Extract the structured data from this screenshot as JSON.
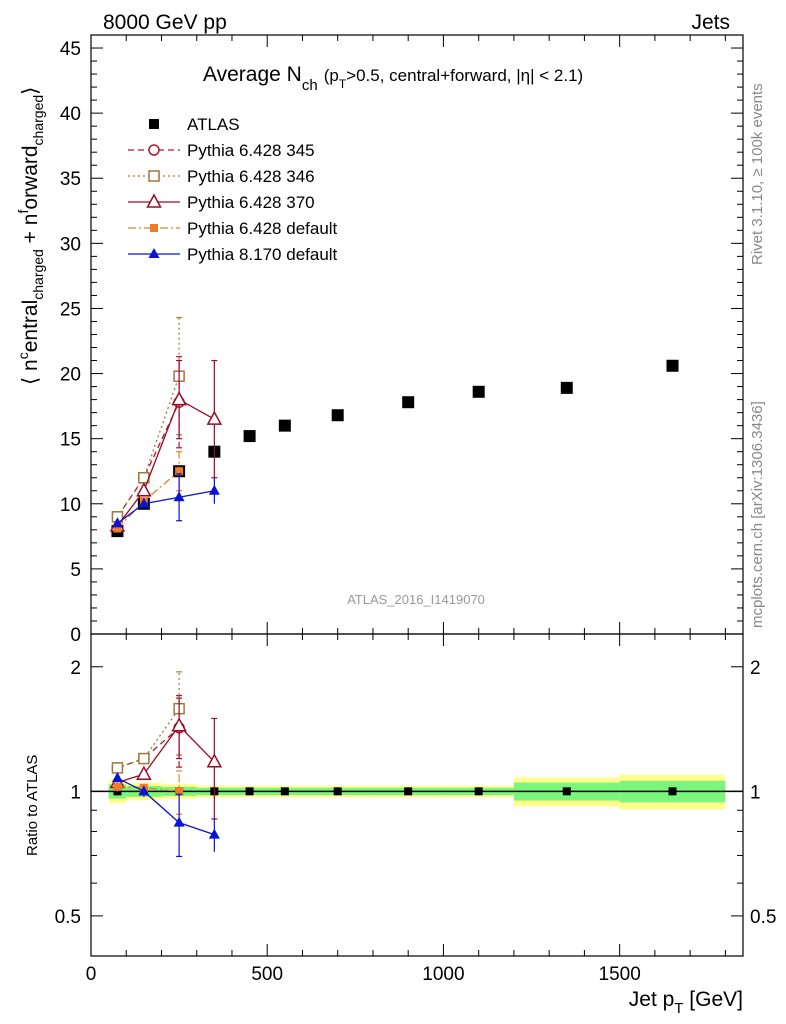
{
  "header": {
    "left": "8000 GeV pp",
    "right": "Jets"
  },
  "side_labels": {
    "rivet": "Rivet 3.1.10, ≥ 100k events",
    "mcplots": "mcplots.cern.ch [arXiv:1306.3436]"
  },
  "plot_title": {
    "main": "Average N",
    "main_sub": "ch",
    "paren_open": "(p",
    "paren_sub": "T",
    "paren_rest": ">0.5, central+forward, |η| < 2.1)"
  },
  "watermark": "ATLAS_2016_I1419070",
  "ylabel_main": {
    "p1": "⟨ n",
    "sup1": "c",
    "p2": "entral",
    "sub1": "charged",
    "p3": " + n",
    "sup2": "f",
    "p4": "orward",
    "sub2": "charged",
    "p5": "⟩"
  },
  "ylabel_ratio": "Ratio to ATLAS",
  "xlabel": {
    "main": "Jet p",
    "sub": "T",
    "rest": " [GeV]"
  },
  "colors": {
    "atlas": "#000000",
    "p345": "#b2182b",
    "p346": "#a0783c",
    "p370": "#9b0a24",
    "p6def": "#f07c28",
    "p8def": "#0a14d2",
    "band_inner": "#7cf57c",
    "band_outer": "#ffff8c"
  },
  "chart_data": {
    "type": "scatter",
    "xlabel": "Jet p_T [GeV]",
    "ylabel": "⟨ n^central_charged + n^forward_charged ⟩",
    "xlim": [
      0,
      1850
    ],
    "ylim": [
      0,
      46
    ],
    "ratio_ylim": [
      0.4,
      2.4
    ],
    "ratio_yscale": "log",
    "x_ticks": [
      "0",
      "500",
      "1000",
      "1500"
    ],
    "y_ticks": [
      "0",
      "5",
      "10",
      "15",
      "20",
      "25",
      "30",
      "35",
      "40",
      "45"
    ],
    "ratio_ticks": [
      "0.5",
      "1",
      "2"
    ],
    "legend_position": "top-left",
    "series": [
      {
        "key": "atlas",
        "name": "ATLAS",
        "marker": "filled-square",
        "line": "none",
        "points": [
          {
            "x": 75,
            "y": 7.9,
            "err": 0.3,
            "xlo": 50,
            "xhi": 100,
            "bin": 0.04
          },
          {
            "x": 150,
            "y": 10.0,
            "err": 0.3,
            "xlo": 100,
            "xhi": 200,
            "bin": 0.03
          },
          {
            "x": 250,
            "y": 12.5,
            "err": 0.2,
            "xlo": 200,
            "xhi": 300,
            "bin": 0.025
          },
          {
            "x": 350,
            "y": 14.0,
            "err": 0.2,
            "xlo": 300,
            "xhi": 400,
            "bin": 0.02
          },
          {
            "x": 450,
            "y": 15.2,
            "err": 0.2,
            "xlo": 400,
            "xhi": 500,
            "bin": 0.02
          },
          {
            "x": 550,
            "y": 16.0,
            "err": 0.2,
            "xlo": 500,
            "xhi": 600,
            "bin": 0.02
          },
          {
            "x": 700,
            "y": 16.8,
            "err": 0.2,
            "xlo": 600,
            "xhi": 800,
            "bin": 0.02
          },
          {
            "x": 900,
            "y": 17.8,
            "err": 0.2,
            "xlo": 800,
            "xhi": 1000,
            "bin": 0.02
          },
          {
            "x": 1100,
            "y": 18.6,
            "err": 0.2,
            "xlo": 1000,
            "xhi": 1200,
            "bin": 0.02
          },
          {
            "x": 1350,
            "y": 18.9,
            "err": 0.3,
            "xlo": 1200,
            "xhi": 1500,
            "bin": 0.05
          },
          {
            "x": 1650,
            "y": 20.6,
            "err": 0.4,
            "xlo": 1500,
            "xhi": 1800,
            "bin": 0.06
          }
        ]
      },
      {
        "key": "p345",
        "name": "Pythia 6.428 345",
        "marker": "open-circle",
        "line": "dashed",
        "points": [
          {
            "x": 75,
            "y": 9.0,
            "err": 0.2
          },
          {
            "x": 150,
            "y": 12.0,
            "err": 0.3
          },
          {
            "x": 250,
            "y": 17.8,
            "err": 3.5
          }
        ]
      },
      {
        "key": "p346",
        "name": "Pythia 6.428 346",
        "marker": "open-square",
        "line": "dotted",
        "points": [
          {
            "x": 75,
            "y": 9.0,
            "err": 0.2
          },
          {
            "x": 150,
            "y": 12.0,
            "err": 0.3
          },
          {
            "x": 250,
            "y": 19.8,
            "err": 4.5
          }
        ]
      },
      {
        "key": "p370",
        "name": "Pythia 6.428 370",
        "marker": "open-triangle",
        "line": "solid",
        "points": [
          {
            "x": 75,
            "y": 8.3,
            "err": 0.2
          },
          {
            "x": 150,
            "y": 11.0,
            "err": 0.3
          },
          {
            "x": 250,
            "y": 18.0,
            "err": 3.0
          },
          {
            "x": 350,
            "y": 16.5,
            "err": 4.5
          }
        ]
      },
      {
        "key": "p6def",
        "name": "Pythia 6.428 default",
        "marker": "filled-small-square",
        "line": "dashdot",
        "points": [
          {
            "x": 75,
            "y": 8.1,
            "err": 0.2
          },
          {
            "x": 150,
            "y": 10.2,
            "err": 0.3
          },
          {
            "x": 250,
            "y": 12.5,
            "err": 1.5
          }
        ]
      },
      {
        "key": "p8def",
        "name": "Pythia 8.170 default",
        "marker": "filled-triangle",
        "line": "solid",
        "points": [
          {
            "x": 75,
            "y": 8.5,
            "err": 0.2
          },
          {
            "x": 150,
            "y": 10.0,
            "err": 0.3
          },
          {
            "x": 250,
            "y": 10.5,
            "err": 1.8
          },
          {
            "x": 350,
            "y": 11.0,
            "err": 1.0
          }
        ]
      }
    ]
  }
}
